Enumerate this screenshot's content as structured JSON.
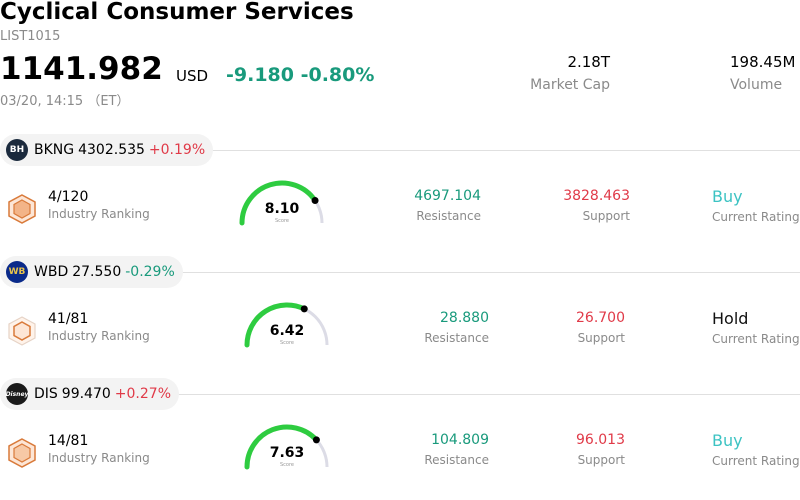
{
  "header": {
    "title": "Cyclical Consumer Services",
    "code": "LIST1015",
    "price": "1141.982",
    "currency": "USD",
    "change": "-9.180",
    "change_pct": "-0.80%",
    "datetime": "03/20, 14:15 （ET）",
    "market_cap_value": "2.18T",
    "market_cap_label": "Market Cap",
    "volume_value": "198.45M",
    "volume_label": "Volume"
  },
  "colors": {
    "up": "#e03a48",
    "down": "#199a7c",
    "buy": "#3cc3c3",
    "gauge_green": "#2ecc40",
    "gauge_track": "#dcdce6"
  },
  "stocks": [
    {
      "symbol": "BKNG",
      "price": "4302.535",
      "change_pct": "+0.19%",
      "logo_text": "BH",
      "rank": "4/120",
      "rank_label": "Industry Ranking",
      "score": "8.10",
      "score_label": "Score",
      "score_value": 8.1,
      "resistance": "4697.104",
      "resistance_label": "Resistance",
      "support": "3828.463",
      "support_label": "Support",
      "rating": "Buy",
      "rating_label": "Current Rating"
    },
    {
      "symbol": "WBD",
      "price": "27.550",
      "change_pct": "-0.29%",
      "logo_text": "WB",
      "rank": "41/81",
      "rank_label": "Industry Ranking",
      "score": "6.42",
      "score_label": "Score",
      "score_value": 6.42,
      "resistance": "28.880",
      "resistance_label": "Resistance",
      "support": "26.700",
      "support_label": "Support",
      "rating": "Hold",
      "rating_label": "Current Rating"
    },
    {
      "symbol": "DIS",
      "price": "99.470",
      "change_pct": "+0.27%",
      "logo_text": "Disney",
      "rank": "14/81",
      "rank_label": "Industry Ranking",
      "score": "7.63",
      "score_label": "Score",
      "score_value": 7.63,
      "resistance": "104.809",
      "resistance_label": "Resistance",
      "support": "96.013",
      "support_label": "Support",
      "rating": "Buy",
      "rating_label": "Current Rating"
    }
  ]
}
